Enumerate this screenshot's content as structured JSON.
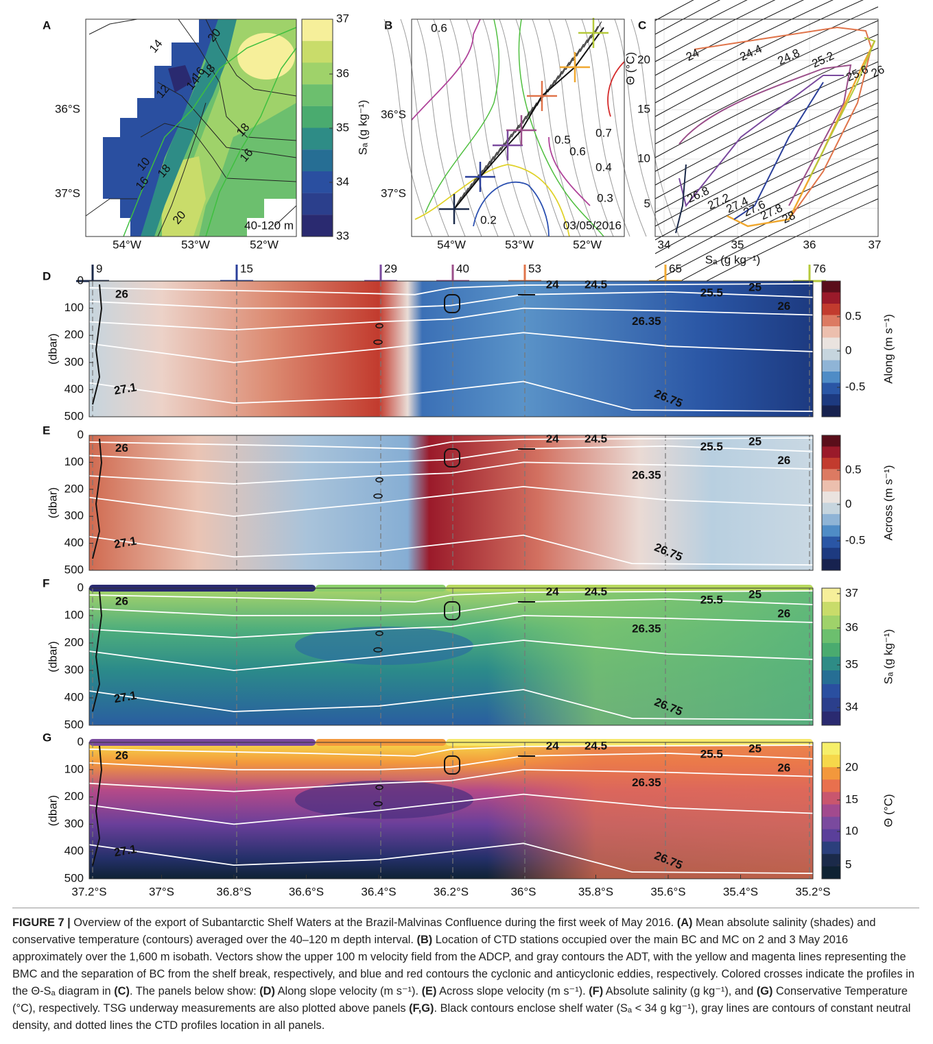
{
  "panels": {
    "A": {
      "label": "A",
      "xticks": [
        "54°W",
        "53°W",
        "52°W"
      ],
      "yticks": [
        "36°S",
        "37°S"
      ],
      "colorbar_ticks": [
        "37",
        "36",
        "35",
        "34",
        "33"
      ],
      "colorbar_label": "Sₐ (g kg⁻¹)",
      "annotation": "40-120 m",
      "contour_labels": [
        "14",
        "20",
        "14",
        "16",
        "18",
        "12",
        "18",
        "16",
        "10",
        "16",
        "18",
        "20"
      ]
    },
    "B": {
      "label": "B",
      "xticks": [
        "54°W",
        "53°W",
        "52°W"
      ],
      "yticks": [
        "36°S",
        "37°S"
      ],
      "annotation": "03/05/2016",
      "contour_labels": [
        "0.6",
        "0.5",
        "0.6",
        "0.7",
        "0.4",
        "0.3",
        "0.2"
      ]
    },
    "C": {
      "label": "C",
      "xticks": [
        "34",
        "35",
        "36",
        "37"
      ],
      "yticks": [
        "20",
        "15",
        "10",
        "5"
      ],
      "xlabel": "Sₐ (g kg⁻¹)",
      "ylabel": "Θ (°C)",
      "contour_labels": [
        "24",
        "24.4",
        "24.8",
        "25.2",
        "25.6",
        "26",
        "26.8",
        "27.2",
        "27.4",
        "27.6",
        "27.8",
        "28"
      ]
    },
    "D": {
      "label": "D",
      "ylabel": "(dbar)",
      "yticks": [
        "0",
        "100",
        "200",
        "300",
        "400",
        "500"
      ],
      "colorbar_ticks": [
        "0.5",
        "0",
        "-0.5"
      ],
      "colorbar_label": "Along (m s⁻¹)",
      "contour_labels": [
        "26",
        "24",
        "24.5",
        "25.5",
        "25",
        "26",
        "26.35",
        "27.1",
        "26.75"
      ]
    },
    "E": {
      "label": "E",
      "ylabel": "(dbar)",
      "yticks": [
        "0",
        "100",
        "200",
        "300",
        "400",
        "500"
      ],
      "colorbar_ticks": [
        "0.5",
        "0",
        "-0.5"
      ],
      "colorbar_label": "Across (m s⁻¹)",
      "contour_labels": [
        "26",
        "24",
        "24.5",
        "25.5",
        "25",
        "26",
        "26.35",
        "27.1",
        "26.75"
      ]
    },
    "F": {
      "label": "F",
      "ylabel": "(dbar)",
      "yticks": [
        "0",
        "100",
        "200",
        "300",
        "400",
        "500"
      ],
      "colorbar_ticks": [
        "37",
        "36",
        "35",
        "34"
      ],
      "colorbar_label": "Sₐ (g kg⁻¹)",
      "contour_labels": [
        "26",
        "24",
        "24.5",
        "25.5",
        "25",
        "26",
        "26.35",
        "27.1",
        "26.75"
      ]
    },
    "G": {
      "label": "G",
      "ylabel": "(dbar)",
      "yticks": [
        "0",
        "100",
        "200",
        "300",
        "400",
        "500"
      ],
      "colorbar_ticks": [
        "20",
        "15",
        "10",
        "5"
      ],
      "colorbar_label": "Θ (°C)",
      "contour_labels": [
        "26",
        "24",
        "24.5",
        "25.5",
        "25",
        "26",
        "26.35",
        "27.1",
        "26.75"
      ]
    }
  },
  "stations": [
    {
      "label": "9",
      "color": "#1b2a4a"
    },
    {
      "label": "15",
      "color": "#2a3f9a"
    },
    {
      "label": "29",
      "color": "#7a4a9e"
    },
    {
      "label": "40",
      "color": "#9b4f8a"
    },
    {
      "label": "53",
      "color": "#e0744a"
    },
    {
      "label": "65",
      "color": "#f0a830"
    },
    {
      "label": "76",
      "color": "#b5c93a"
    }
  ],
  "section_xticks": [
    "37.2°S",
    "37°S",
    "36.8°S",
    "36.6°S",
    "36.4°S",
    "36.2°S",
    "36°S",
    "35.8°S",
    "35.6°S",
    "35.4°S",
    "35.2°S"
  ],
  "caption": [
    {
      "text": "FIGURE 7 |",
      "bold": true
    },
    {
      "text": " Overview of the export of Subantarctic Shelf Waters at the Brazil-Malvinas Confluence during the first week of May 2016. ",
      "bold": false
    },
    {
      "text": "(A)",
      "bold": true
    },
    {
      "text": " Mean absolute salinity (shades) and conservative temperature (contours) averaged over the 40–120 m depth interval. ",
      "bold": false
    },
    {
      "text": "(B)",
      "bold": true
    },
    {
      "text": " Location of CTD stations occupied over the main BC and MC on 2 and 3 May 2016 approximately over the 1,600 m isobath. Vectors show the upper 100 m velocity field from the ADCP, and gray contours the ADT, with the yellow and magenta lines representing the BMC and the separation of BC from the shelf break, respectively, and blue and red contours the cyclonic and anticyclonic eddies, respectively. Colored crosses indicate the profiles in the Θ-Sₐ diagram in ",
      "bold": false
    },
    {
      "text": "(C)",
      "bold": true
    },
    {
      "text": ". The panels below show: ",
      "bold": false
    },
    {
      "text": "(D)",
      "bold": true
    },
    {
      "text": " Along slope velocity (m s⁻¹). ",
      "bold": false
    },
    {
      "text": "(E)",
      "bold": true
    },
    {
      "text": " Across slope velocity (m s⁻¹). ",
      "bold": false
    },
    {
      "text": "(F)",
      "bold": true
    },
    {
      "text": " Absolute salinity (g kg⁻¹), and ",
      "bold": false
    },
    {
      "text": "(G)",
      "bold": true
    },
    {
      "text": " Conservative Temperature (°C), respectively. TSG underway measurements are also plotted above panels ",
      "bold": false
    },
    {
      "text": "(F,G)",
      "bold": true
    },
    {
      "text": ". Black contours enclose shelf water (Sₐ < 34 g kg⁻¹), gray lines are contours of constant neutral density, and dotted lines the CTD profiles location in all panels.",
      "bold": false
    }
  ]
}
